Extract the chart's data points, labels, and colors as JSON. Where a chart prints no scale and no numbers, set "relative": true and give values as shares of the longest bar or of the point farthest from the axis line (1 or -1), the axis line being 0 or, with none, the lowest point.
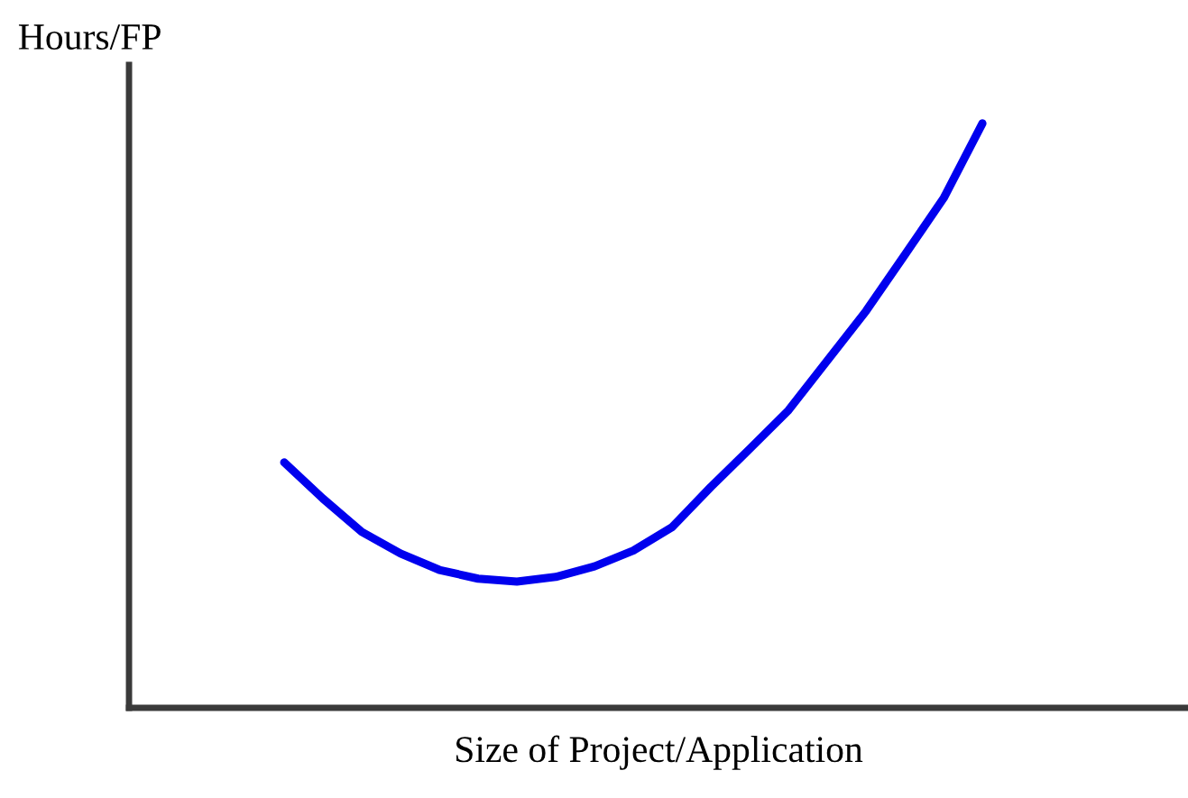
{
  "chart_data": {
    "type": "line",
    "relative": true,
    "xlabel": "Size of Project/Application",
    "ylabel": "Hours/FP",
    "categories": [
      null,
      null,
      null,
      null,
      null,
      null,
      null,
      null,
      null,
      null,
      null,
      null,
      null,
      null,
      null,
      null,
      null,
      null,
      null,
      null,
      null,
      null,
      null,
      null,
      null,
      null,
      null,
      null
    ],
    "series": [
      {
        "color": "#0000ee",
        "values": [
          null,
          null,
          null,
          null,
          0.42,
          0.358,
          0.301,
          0.264,
          0.236,
          0.221,
          0.216,
          0.224,
          0.242,
          0.269,
          0.309,
          0.378,
          0.443,
          0.509,
          0.594,
          0.679,
          0.775,
          0.872,
          1,
          null,
          null,
          null,
          null,
          null
        ]
      }
    ],
    "grid": false,
    "legend": false,
    "marker": "none",
    "line_style": "solid",
    "tick_labels": false
  }
}
